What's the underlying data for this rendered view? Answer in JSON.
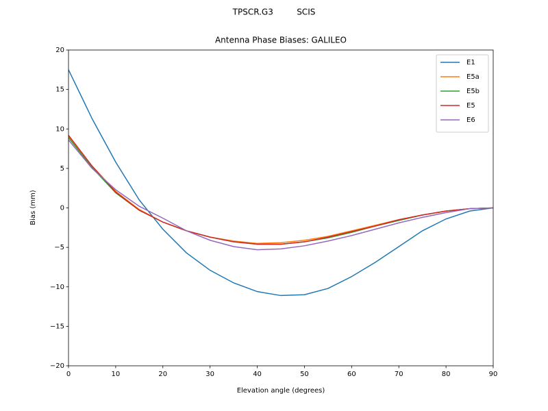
{
  "chart_data": {
    "type": "line",
    "suptitle": "TPSCR.G3         SCIS",
    "title": "Antenna Phase Biases: GALILEO",
    "xlabel": "Elevation angle (degrees)",
    "ylabel": "Bias (mm)",
    "x": [
      0,
      5,
      10,
      15,
      20,
      25,
      30,
      35,
      40,
      45,
      50,
      55,
      60,
      65,
      70,
      75,
      80,
      85,
      90
    ],
    "series": [
      {
        "name": "E1",
        "color": "#1f77b4",
        "values": [
          17.5,
          11.3,
          5.8,
          1.0,
          -2.7,
          -5.7,
          -7.9,
          -9.5,
          -10.6,
          -11.1,
          -11.0,
          -10.2,
          -8.7,
          -6.9,
          -4.9,
          -2.9,
          -1.4,
          -0.4,
          0.0
        ]
      },
      {
        "name": "E5a",
        "color": "#ff7f0e",
        "values": [
          9.1,
          5.3,
          2.1,
          -0.2,
          -1.8,
          -2.9,
          -3.7,
          -4.2,
          -4.5,
          -4.4,
          -4.1,
          -3.6,
          -2.9,
          -2.2,
          -1.5,
          -0.9,
          -0.4,
          -0.1,
          0.0
        ]
      },
      {
        "name": "E5b",
        "color": "#2ca02c",
        "values": [
          8.9,
          5.1,
          1.9,
          -0.3,
          -1.8,
          -2.9,
          -3.7,
          -4.3,
          -4.6,
          -4.6,
          -4.3,
          -3.8,
          -3.1,
          -2.3,
          -1.6,
          -0.9,
          -0.4,
          -0.1,
          0.0
        ]
      },
      {
        "name": "E5",
        "color": "#d62728",
        "values": [
          9.2,
          5.3,
          2.0,
          -0.3,
          -1.8,
          -2.9,
          -3.7,
          -4.3,
          -4.6,
          -4.6,
          -4.3,
          -3.7,
          -3.0,
          -2.3,
          -1.5,
          -0.9,
          -0.4,
          -0.1,
          0.0
        ]
      },
      {
        "name": "E6",
        "color": "#9467bd",
        "values": [
          8.6,
          5.0,
          2.3,
          0.2,
          -1.3,
          -2.9,
          -4.1,
          -4.9,
          -5.3,
          -5.2,
          -4.8,
          -4.2,
          -3.5,
          -2.7,
          -1.9,
          -1.2,
          -0.6,
          -0.1,
          0.0
        ]
      }
    ],
    "xlim": [
      0,
      90
    ],
    "xticks": [
      0,
      10,
      20,
      30,
      40,
      50,
      60,
      70,
      80,
      90
    ],
    "ylim": [
      -20,
      20
    ],
    "yticks": [
      {
        "value": -20,
        "label": "−20"
      },
      {
        "value": -15,
        "label": "−15"
      },
      {
        "value": -10,
        "label": "−10"
      },
      {
        "value": -5,
        "label": "−5"
      },
      0,
      5,
      10,
      15,
      20
    ],
    "grid": false,
    "legend": "upper right"
  }
}
